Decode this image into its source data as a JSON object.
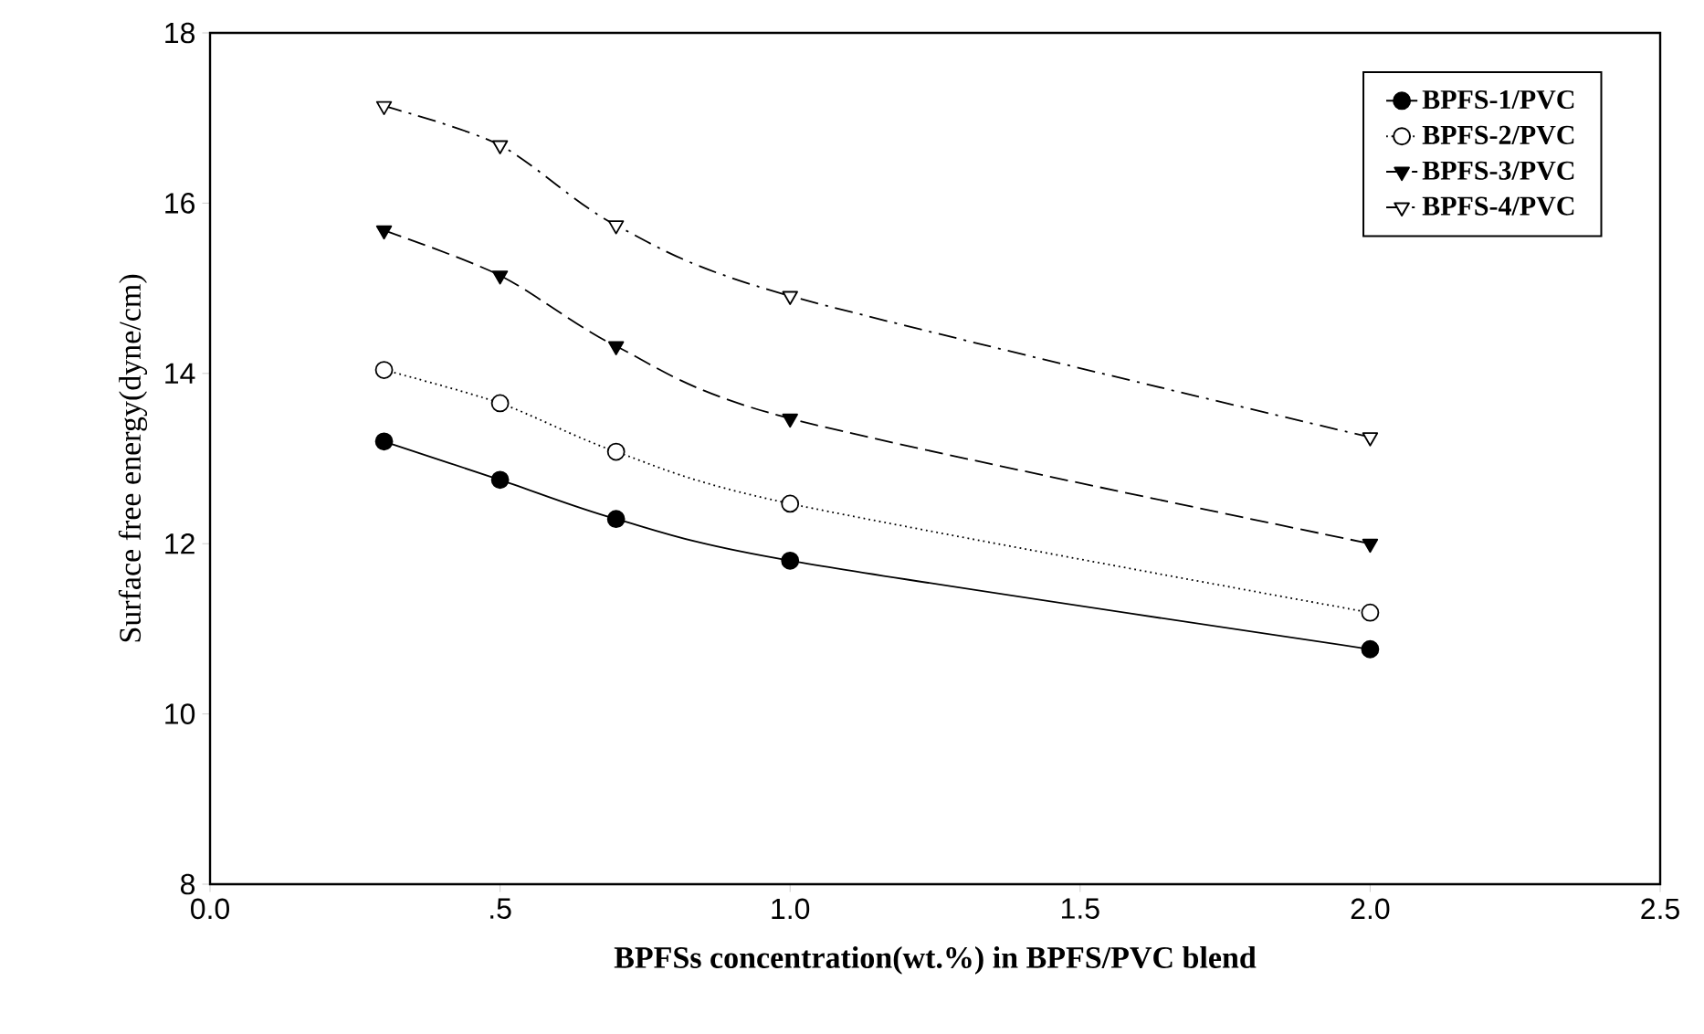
{
  "chart_data": {
    "type": "line",
    "xlabel": "BPFSs concentration(wt.%) in BPFS/PVC blend",
    "ylabel": "Surface free energy(dyne/cm)",
    "x": [
      0.3,
      0.5,
      0.7,
      1.0,
      2.0
    ],
    "series": [
      {
        "name": "BPFS-1/PVC",
        "color": "#000000",
        "marker": "circle",
        "line_style": "solid",
        "values": [
          13.2,
          12.75,
          12.29,
          11.8,
          10.76
        ]
      },
      {
        "name": "BPFS-2/PVC",
        "color": "#000000",
        "marker": "circle",
        "line_style": "dotted",
        "values": [
          14.04,
          13.65,
          13.08,
          12.47,
          11.19
        ]
      },
      {
        "name": "BPFS-3/PVC",
        "color": "#000000",
        "marker": "triangle",
        "line_style": "dashed",
        "values": [
          15.68,
          15.15,
          14.32,
          13.47,
          12.0
        ]
      },
      {
        "name": "BPFS-4/PVC",
        "color": "#000000",
        "marker": "triangle",
        "line_style": "dashdot",
        "values": [
          17.14,
          16.68,
          15.74,
          14.91,
          13.25
        ]
      }
    ],
    "xlim": [
      0,
      2.5
    ],
    "ylim": [
      8,
      18
    ],
    "xticks": [
      {
        "value": 0,
        "label": "0.0"
      },
      {
        "value": 0.5,
        "label": ".5"
      },
      {
        "value": 1.0,
        "label": "1.0"
      },
      {
        "value": 1.5,
        "label": "1.5"
      },
      {
        "value": 2.0,
        "label": "2.0"
      },
      {
        "value": 2.5,
        "label": "2.5"
      }
    ],
    "yticks": [
      8,
      10,
      12,
      14,
      16,
      18
    ],
    "legend": "top right",
    "grid": false
  }
}
